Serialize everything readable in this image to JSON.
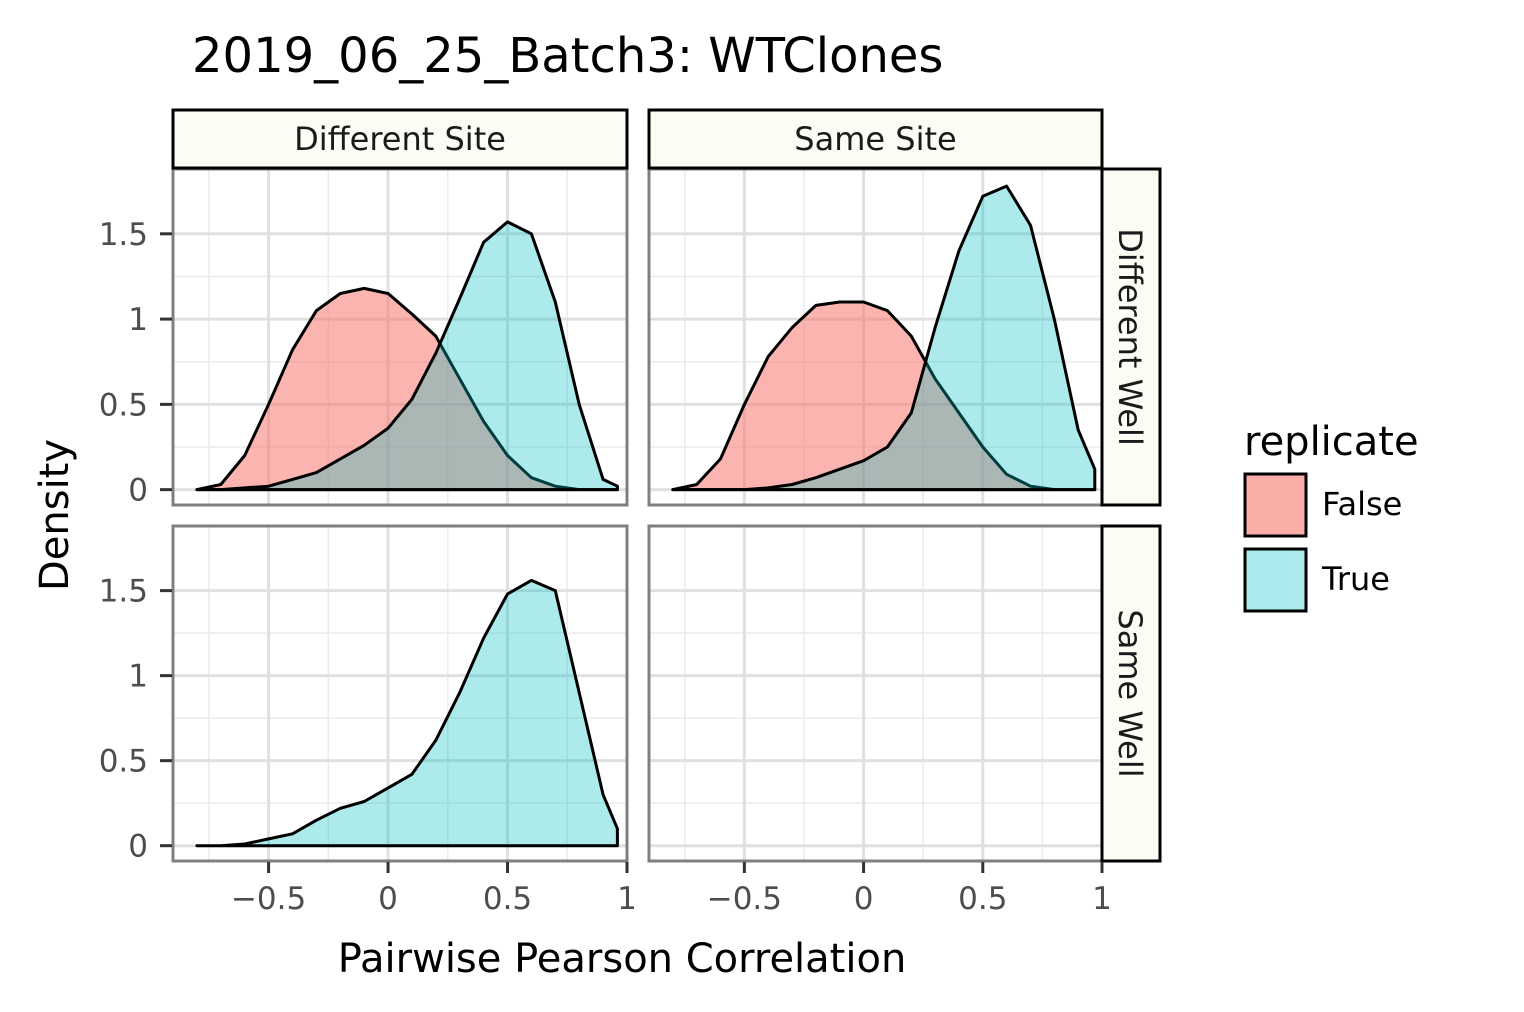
{
  "chart_data": {
    "type": "area",
    "title": "2019_06_25_Batch3: WTClones",
    "xlabel": "Pairwise Pearson Correlation",
    "ylabel": "Density",
    "xlim": [
      -0.9,
      1.0
    ],
    "ylim": [
      -0.09,
      1.88
    ],
    "x_ticks": [
      -0.5,
      0,
      0.5,
      1
    ],
    "x_tick_labels": [
      "−0.5",
      "0",
      "0.5",
      "1"
    ],
    "y_ticks": [
      0,
      0.5,
      1,
      1.5
    ],
    "y_tick_labels": [
      "0",
      "0.5",
      "1",
      "1.5"
    ],
    "grid": true,
    "column_facets": [
      "Different Site",
      "Same Site"
    ],
    "row_facets": [
      "Different Well",
      "Same Well"
    ],
    "legend": {
      "title": "replicate",
      "position": "right",
      "entries": [
        {
          "label": "False",
          "color": "#f8766d"
        },
        {
          "label": "True",
          "color": "#00bfc4"
        }
      ]
    },
    "panels": [
      {
        "column": "Different Site",
        "row": "Different Well",
        "series": [
          {
            "name": "False",
            "color": "#f8766d",
            "x": [
              -0.8,
              -0.7,
              -0.6,
              -0.5,
              -0.4,
              -0.3,
              -0.2,
              -0.1,
              0.0,
              0.1,
              0.2,
              0.3,
              0.4,
              0.5,
              0.6,
              0.7,
              0.8,
              0.9,
              0.96
            ],
            "y": [
              0.0,
              0.03,
              0.2,
              0.5,
              0.82,
              1.05,
              1.15,
              1.18,
              1.15,
              1.03,
              0.9,
              0.65,
              0.4,
              0.2,
              0.07,
              0.02,
              0.0,
              0.0,
              0.0
            ]
          },
          {
            "name": "True",
            "color": "#00bfc4",
            "x": [
              -0.8,
              -0.7,
              -0.6,
              -0.5,
              -0.4,
              -0.3,
              -0.2,
              -0.1,
              0.0,
              0.1,
              0.2,
              0.3,
              0.4,
              0.5,
              0.6,
              0.7,
              0.8,
              0.9,
              0.96
            ],
            "y": [
              0.0,
              0.0,
              0.01,
              0.02,
              0.06,
              0.1,
              0.18,
              0.26,
              0.36,
              0.53,
              0.8,
              1.12,
              1.45,
              1.57,
              1.5,
              1.1,
              0.5,
              0.06,
              0.02
            ]
          }
        ]
      },
      {
        "column": "Same Site",
        "row": "Different Well",
        "series": [
          {
            "name": "False",
            "color": "#f8766d",
            "x": [
              -0.8,
              -0.7,
              -0.6,
              -0.5,
              -0.4,
              -0.3,
              -0.2,
              -0.1,
              0.0,
              0.1,
              0.2,
              0.3,
              0.4,
              0.5,
              0.6,
              0.7,
              0.8,
              0.9,
              0.97
            ],
            "y": [
              0.0,
              0.03,
              0.18,
              0.5,
              0.78,
              0.95,
              1.08,
              1.1,
              1.1,
              1.05,
              0.9,
              0.65,
              0.45,
              0.25,
              0.09,
              0.02,
              0.0,
              0.0,
              0.0
            ]
          },
          {
            "name": "True",
            "color": "#00bfc4",
            "x": [
              -0.8,
              -0.7,
              -0.6,
              -0.5,
              -0.4,
              -0.3,
              -0.2,
              -0.1,
              0.0,
              0.1,
              0.2,
              0.3,
              0.4,
              0.5,
              0.6,
              0.7,
              0.8,
              0.9,
              0.97
            ],
            "y": [
              0.0,
              0.0,
              0.0,
              0.0,
              0.01,
              0.03,
              0.07,
              0.12,
              0.17,
              0.25,
              0.45,
              0.95,
              1.4,
              1.72,
              1.78,
              1.55,
              1.0,
              0.35,
              0.12
            ]
          }
        ]
      },
      {
        "column": "Different Site",
        "row": "Same Well",
        "series": [
          {
            "name": "True",
            "color": "#00bfc4",
            "x": [
              -0.8,
              -0.7,
              -0.6,
              -0.5,
              -0.4,
              -0.3,
              -0.2,
              -0.1,
              0.0,
              0.1,
              0.2,
              0.3,
              0.4,
              0.5,
              0.6,
              0.7,
              0.8,
              0.9,
              0.96
            ],
            "y": [
              0.0,
              0.0,
              0.01,
              0.04,
              0.07,
              0.15,
              0.22,
              0.26,
              0.34,
              0.42,
              0.62,
              0.9,
              1.22,
              1.48,
              1.56,
              1.5,
              0.9,
              0.3,
              0.1
            ]
          }
        ]
      },
      {
        "column": "Same Site",
        "row": "Same Well",
        "series": []
      }
    ]
  }
}
